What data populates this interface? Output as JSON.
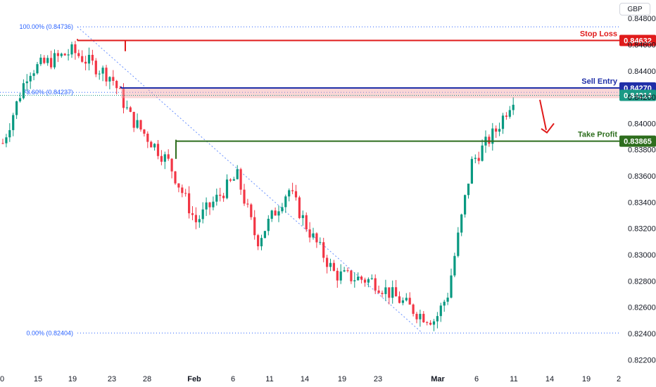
{
  "currency": "GBP",
  "chart_data": {
    "type": "candlestick",
    "ylim": [
      0.821,
      0.8494
    ],
    "y_ticks": [
      "0.84800",
      "0.84600",
      "0.84400",
      "0.84200",
      "0.84000",
      "0.83800",
      "0.83600",
      "0.83400",
      "0.83200",
      "0.83000",
      "0.82800",
      "0.82600",
      "0.82400",
      "0.82200"
    ],
    "x_ticks": [
      "0",
      "15",
      "19",
      "23",
      "28",
      "Feb",
      "6",
      "11",
      "14",
      "19",
      "23",
      "Mar",
      "6",
      "11",
      "14",
      "19",
      "2"
    ],
    "levels": {
      "stop_loss": {
        "label": "Stop Loss",
        "value": 0.84632,
        "tag": "0.84632",
        "color": "#e01b1b"
      },
      "sell_entry": {
        "label": "Sell Entry",
        "value": 0.8427,
        "tag": "0.84270",
        "color": "#1f2fa8"
      },
      "current_price": {
        "value": 0.84214,
        "tag": "0.84214",
        "color": "#1a9a85"
      },
      "take_profit": {
        "label": "Take Profit",
        "value": 0.83865,
        "tag": "0.83865",
        "color": "#2e6e1e"
      }
    },
    "fib_levels": [
      {
        "label": "100.00% (0.84736)",
        "value": 0.84736
      },
      {
        "label": "78.60% (0.84237)",
        "value": 0.84237
      },
      {
        "label": "0.00% (0.82404)",
        "value": 0.82404
      }
    ],
    "ohlc_keypoints": [
      {
        "date": "Jan 11",
        "price": 0.8385
      },
      {
        "date": "Jan 16",
        "price": 0.844
      },
      {
        "date": "Jan 19",
        "price": 0.8455
      },
      {
        "date": "Jan 23",
        "price": 0.8435
      },
      {
        "date": "Jan 26",
        "price": 0.8405
      },
      {
        "date": "Jan 30",
        "price": 0.837
      },
      {
        "date": "Feb 2",
        "price": 0.8325
      },
      {
        "date": "Feb 6",
        "price": 0.836
      },
      {
        "date": "Feb 9",
        "price": 0.831
      },
      {
        "date": "Feb 13",
        "price": 0.835
      },
      {
        "date": "Feb 16",
        "price": 0.832
      },
      {
        "date": "Feb 20",
        "price": 0.8285
      },
      {
        "date": "Feb 23",
        "price": 0.828
      },
      {
        "date": "Feb 28",
        "price": 0.8255
      },
      {
        "date": "Mar 1",
        "price": 0.825
      },
      {
        "date": "Mar 3",
        "price": 0.827
      },
      {
        "date": "Mar 6",
        "price": 0.837
      },
      {
        "date": "Mar 9",
        "price": 0.8395
      },
      {
        "date": "Mar 11",
        "price": 0.8421
      }
    ]
  }
}
